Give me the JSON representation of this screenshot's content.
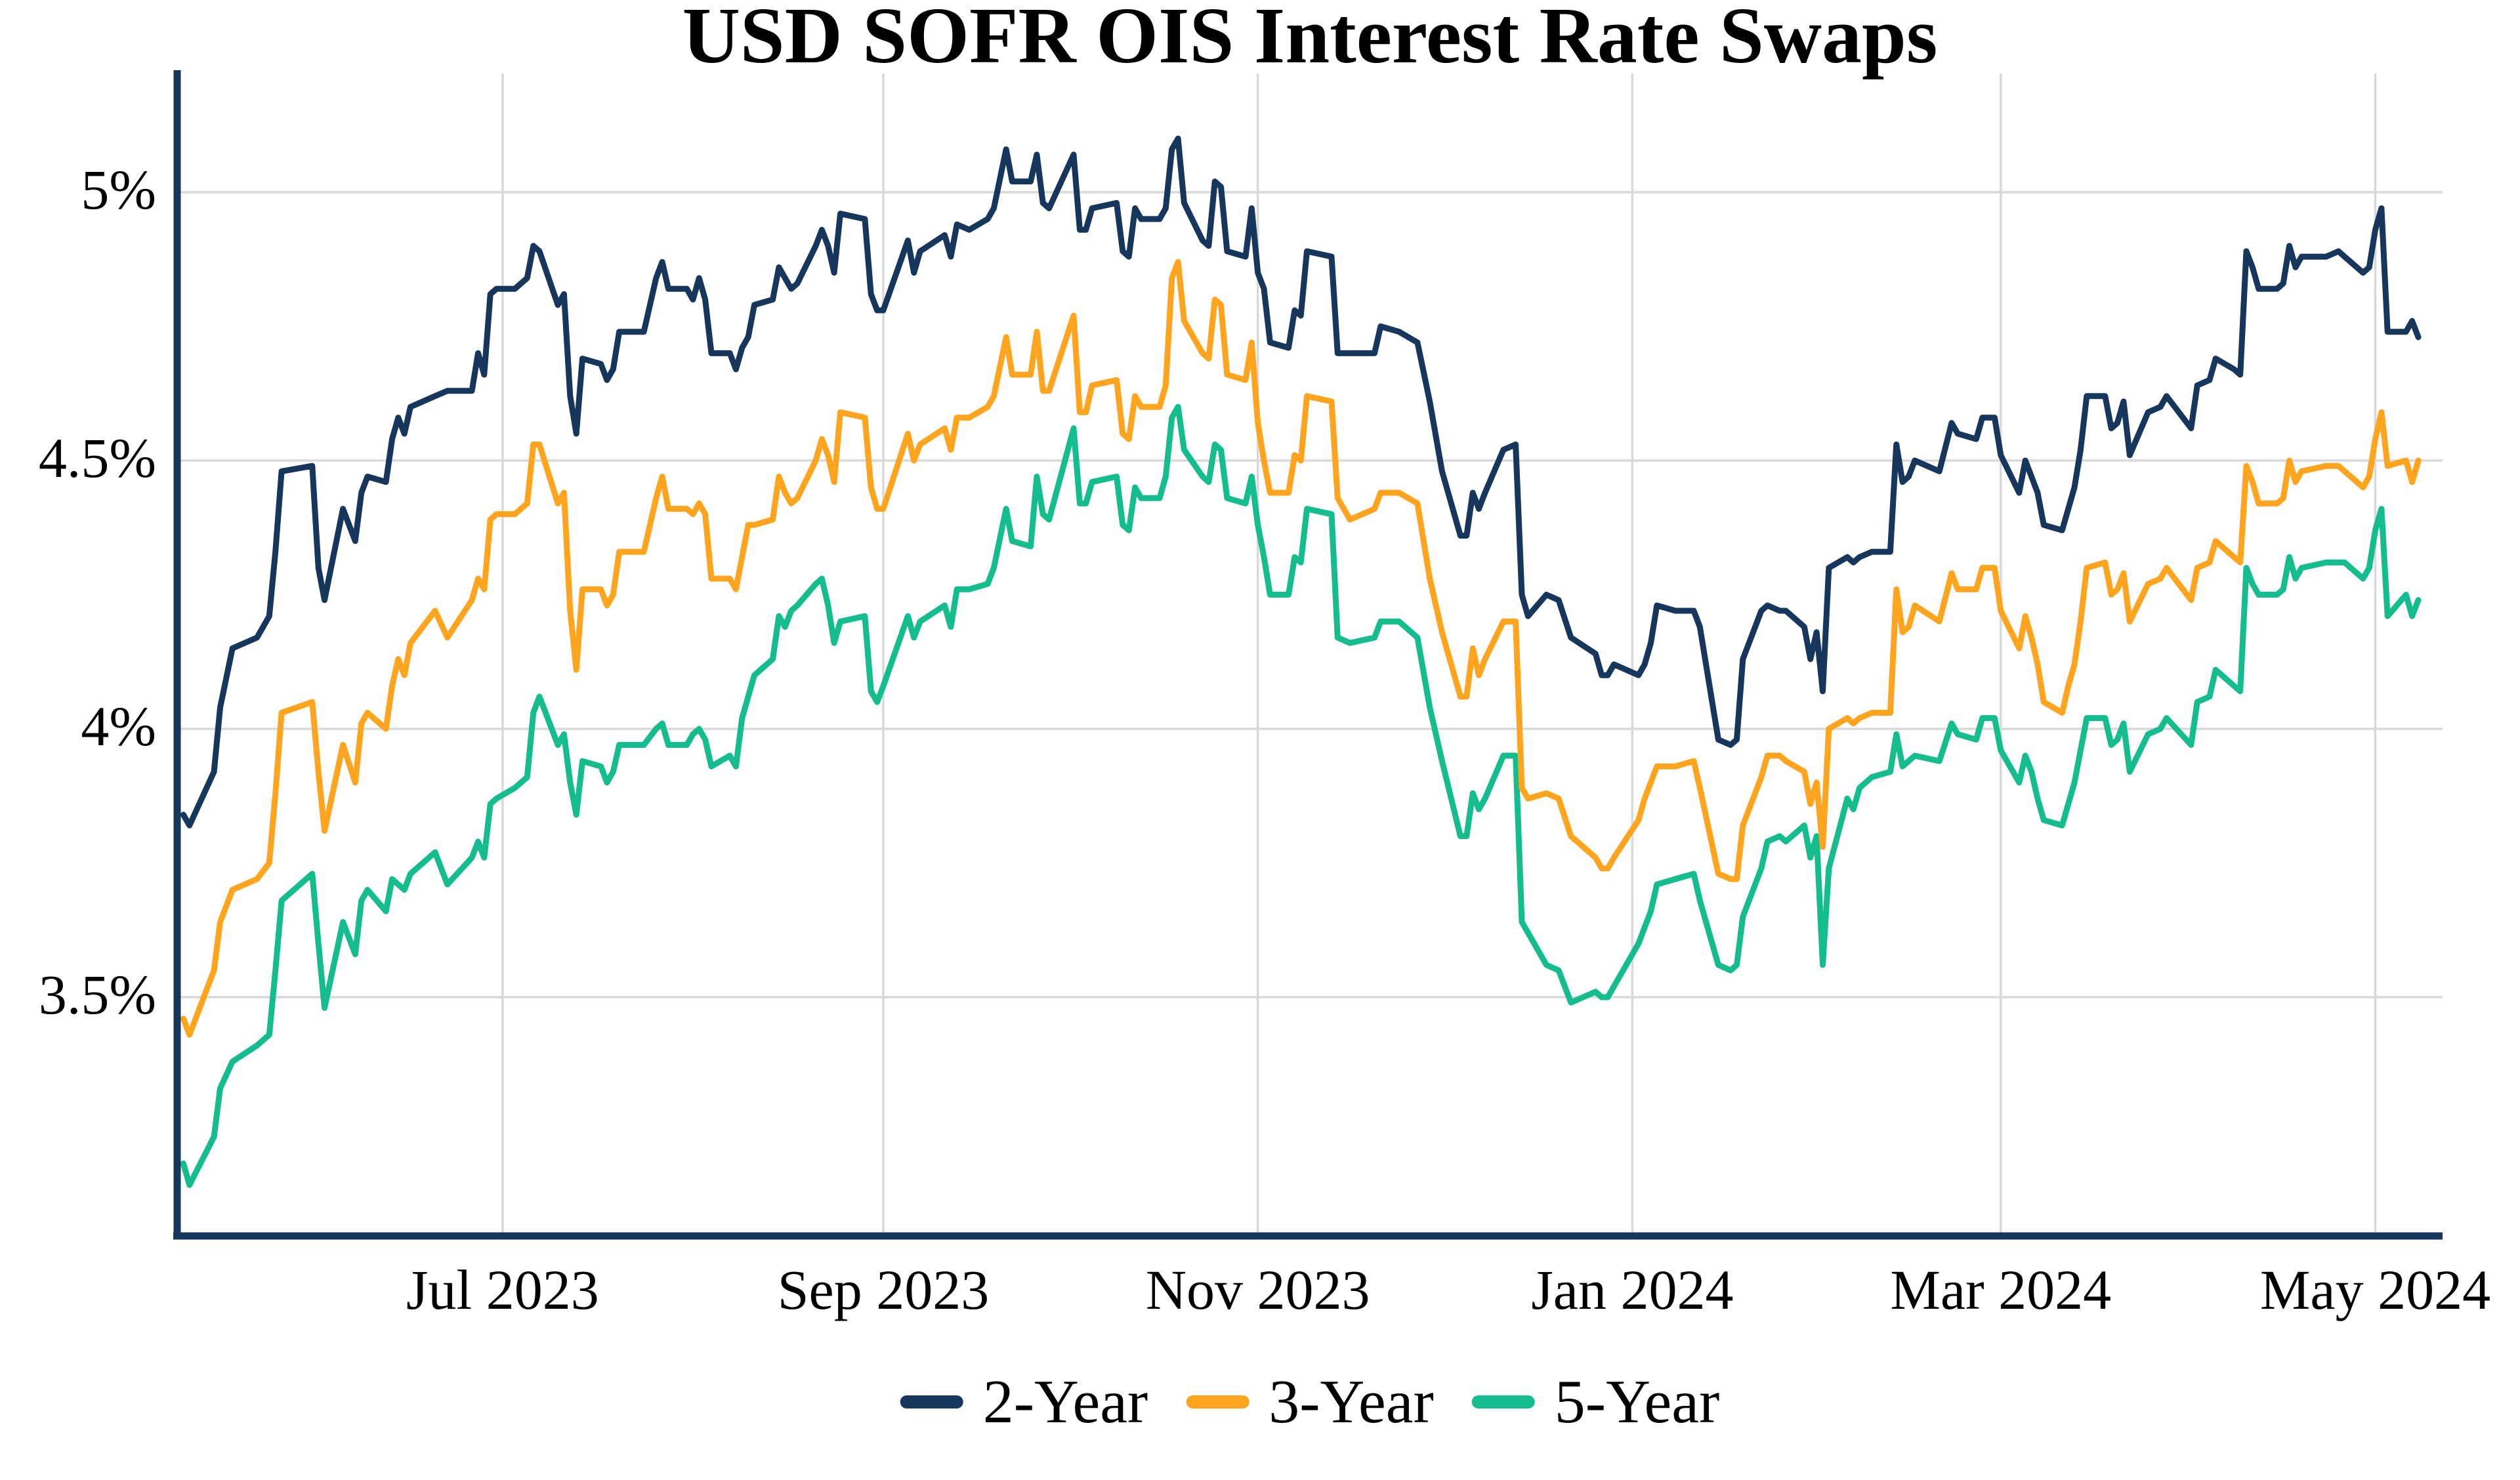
{
  "chart_data": {
    "type": "line",
    "title": "USD SOFR OIS Interest Rate Swaps",
    "xlabel": "",
    "ylabel": "",
    "grid": true,
    "legend_position": "bottom",
    "grid_color": "#D9D9D9",
    "axis_color": "#16365C",
    "x_domain": [
      "2023-05-09",
      "2024-05-08"
    ],
    "x_ticks": [
      "2023-07-01",
      "2023-09-01",
      "2023-11-01",
      "2024-01-01",
      "2024-03-01",
      "2024-05-01"
    ],
    "x_tick_labels": [
      "Jul 2023",
      "Sep 2023",
      "Nov 2023",
      "Jan 2024",
      "Mar 2024",
      "May 2024"
    ],
    "y_ticks": [
      5,
      4.5,
      4,
      3.5
    ],
    "y_tick_labels": [
      "5%",
      "4.5%",
      "4%",
      "3.5%"
    ],
    "ylim": [
      3.05,
      5.22
    ],
    "dates": [
      "2023-05-10",
      "2023-05-11",
      "2023-05-15",
      "2023-05-16",
      "2023-05-18",
      "2023-05-22",
      "2023-05-24",
      "2023-05-25",
      "2023-05-26",
      "2023-05-31",
      "2023-06-01",
      "2023-06-02",
      "2023-06-05",
      "2023-06-07",
      "2023-06-08",
      "2023-06-09",
      "2023-06-12",
      "2023-06-13",
      "2023-06-14",
      "2023-06-15",
      "2023-06-16",
      "2023-06-20",
      "2023-06-22",
      "2023-06-26",
      "2023-06-27",
      "2023-06-28",
      "2023-06-29",
      "2023-06-30",
      "2023-07-03",
      "2023-07-05",
      "2023-07-06",
      "2023-07-07",
      "2023-07-10",
      "2023-07-11",
      "2023-07-12",
      "2023-07-13",
      "2023-07-14",
      "2023-07-17",
      "2023-07-18",
      "2023-07-19",
      "2023-07-20",
      "2023-07-24",
      "2023-07-26",
      "2023-07-27",
      "2023-07-28",
      "2023-07-31",
      "2023-08-01",
      "2023-08-02",
      "2023-08-03",
      "2023-08-04",
      "2023-08-07",
      "2023-08-08",
      "2023-08-09",
      "2023-08-10",
      "2023-08-11",
      "2023-08-14",
      "2023-08-15",
      "2023-08-16",
      "2023-08-17",
      "2023-08-18",
      "2023-08-21",
      "2023-08-22",
      "2023-08-23",
      "2023-08-24",
      "2023-08-25",
      "2023-08-29",
      "2023-08-30",
      "2023-08-31",
      "2023-09-01",
      "2023-09-05",
      "2023-09-06",
      "2023-09-07",
      "2023-09-11",
      "2023-09-12",
      "2023-09-13",
      "2023-09-15",
      "2023-09-18",
      "2023-09-19",
      "2023-09-21",
      "2023-09-22",
      "2023-09-25",
      "2023-09-26",
      "2023-09-27",
      "2023-09-28",
      "2023-10-02",
      "2023-10-03",
      "2023-10-04",
      "2023-10-05",
      "2023-10-09",
      "2023-10-10",
      "2023-10-11",
      "2023-10-12",
      "2023-10-13",
      "2023-10-16",
      "2023-10-17",
      "2023-10-18",
      "2023-10-19",
      "2023-10-20",
      "2023-10-23",
      "2023-10-24",
      "2023-10-25",
      "2023-10-26",
      "2023-10-27",
      "2023-10-30",
      "2023-10-31",
      "2023-11-01",
      "2023-11-02",
      "2023-11-03",
      "2023-11-06",
      "2023-11-07",
      "2023-11-08",
      "2023-11-09",
      "2023-11-13",
      "2023-11-14",
      "2023-11-16",
      "2023-11-20",
      "2023-11-21",
      "2023-11-24",
      "2023-11-27",
      "2023-11-29",
      "2023-12-01",
      "2023-12-04",
      "2023-12-05",
      "2023-12-06",
      "2023-12-07",
      "2023-12-08",
      "2023-12-11",
      "2023-12-13",
      "2023-12-14",
      "2023-12-15",
      "2023-12-18",
      "2023-12-20",
      "2023-12-22",
      "2023-12-26",
      "2023-12-27",
      "2023-12-28",
      "2023-12-29",
      "2024-01-02",
      "2024-01-03",
      "2024-01-04",
      "2024-01-05",
      "2024-01-08",
      "2024-01-11",
      "2024-01-12",
      "2024-01-15",
      "2024-01-17",
      "2024-01-18",
      "2024-01-19",
      "2024-01-22",
      "2024-01-23",
      "2024-01-25",
      "2024-01-26",
      "2024-01-29",
      "2024-01-30",
      "2024-01-31",
      "2024-02-01",
      "2024-02-02",
      "2024-02-05",
      "2024-02-06",
      "2024-02-07",
      "2024-02-09",
      "2024-02-12",
      "2024-02-13",
      "2024-02-14",
      "2024-02-15",
      "2024-02-16",
      "2024-02-20",
      "2024-02-22",
      "2024-02-23",
      "2024-02-26",
      "2024-02-27",
      "2024-02-29",
      "2024-03-01",
      "2024-03-04",
      "2024-03-05",
      "2024-03-06",
      "2024-03-07",
      "2024-03-08",
      "2024-03-11",
      "2024-03-12",
      "2024-03-13",
      "2024-03-14",
      "2024-03-15",
      "2024-03-18",
      "2024-03-19",
      "2024-03-20",
      "2024-03-21",
      "2024-03-22",
      "2024-03-25",
      "2024-03-27",
      "2024-03-28",
      "2024-04-01",
      "2024-04-02",
      "2024-04-04",
      "2024-04-05",
      "2024-04-08",
      "2024-04-09",
      "2024-04-10",
      "2024-04-11",
      "2024-04-12",
      "2024-04-15",
      "2024-04-16",
      "2024-04-17",
      "2024-04-18",
      "2024-04-19",
      "2024-04-23",
      "2024-04-25",
      "2024-04-26",
      "2024-04-29",
      "2024-04-30",
      "2024-05-01",
      "2024-05-02",
      "2024-05-03",
      "2024-05-06",
      "2024-05-07",
      "2024-05-08"
    ],
    "series": [
      {
        "name": "2-Year",
        "color": "#16365C",
        "values": [
          3.84,
          3.82,
          3.92,
          4.04,
          4.15,
          4.17,
          4.21,
          4.33,
          4.48,
          4.49,
          4.3,
          4.24,
          4.41,
          4.35,
          4.44,
          4.47,
          4.46,
          4.54,
          4.58,
          4.55,
          4.6,
          4.62,
          4.63,
          4.63,
          4.7,
          4.66,
          4.81,
          4.82,
          4.82,
          4.84,
          4.9,
          4.89,
          4.79,
          4.81,
          4.62,
          4.55,
          4.69,
          4.68,
          4.65,
          4.67,
          4.74,
          4.74,
          4.84,
          4.87,
          4.82,
          4.82,
          4.8,
          4.84,
          4.8,
          4.7,
          4.7,
          4.67,
          4.71,
          4.73,
          4.79,
          4.8,
          4.86,
          4.84,
          4.82,
          4.83,
          4.9,
          4.93,
          4.9,
          4.85,
          4.96,
          4.95,
          4.81,
          4.78,
          4.78,
          4.91,
          4.85,
          4.89,
          4.92,
          4.88,
          4.94,
          4.93,
          4.95,
          4.97,
          5.08,
          5.02,
          5.02,
          5.07,
          4.98,
          4.97,
          5.07,
          4.93,
          4.93,
          4.97,
          4.98,
          4.89,
          4.88,
          4.97,
          4.95,
          4.95,
          4.97,
          5.08,
          5.1,
          4.98,
          4.91,
          4.9,
          5.02,
          5.01,
          4.89,
          4.88,
          4.97,
          4.85,
          4.82,
          4.72,
          4.71,
          4.78,
          4.77,
          4.89,
          4.88,
          4.7,
          4.7,
          4.7,
          4.75,
          4.74,
          4.72,
          4.61,
          4.48,
          4.36,
          4.36,
          4.44,
          4.41,
          4.44,
          4.52,
          4.53,
          4.25,
          4.21,
          4.25,
          4.24,
          4.17,
          4.14,
          4.1,
          4.1,
          4.12,
          4.1,
          4.12,
          4.16,
          4.23,
          4.22,
          4.22,
          4.19,
          3.98,
          3.97,
          3.98,
          4.13,
          4.22,
          4.23,
          4.22,
          4.22,
          4.19,
          4.13,
          4.18,
          4.07,
          4.3,
          4.32,
          4.31,
          4.32,
          4.33,
          4.33,
          4.53,
          4.46,
          4.47,
          4.5,
          4.48,
          4.57,
          4.55,
          4.54,
          4.58,
          4.58,
          4.51,
          4.44,
          4.5,
          4.47,
          4.44,
          4.38,
          4.37,
          4.41,
          4.45,
          4.52,
          4.62,
          4.62,
          4.56,
          4.57,
          4.61,
          4.51,
          4.59,
          4.6,
          4.62,
          4.56,
          4.64,
          4.65,
          4.69,
          4.67,
          4.66,
          4.89,
          4.86,
          4.82,
          4.82,
          4.83,
          4.9,
          4.86,
          4.88,
          4.88,
          4.89,
          4.88,
          4.85,
          4.86,
          4.93,
          4.97,
          4.74,
          4.74,
          4.76,
          4.73
        ]
      },
      {
        "name": "3-Year",
        "color": "#FFA41E",
        "values": [
          3.46,
          3.43,
          3.55,
          3.64,
          3.7,
          3.72,
          3.75,
          3.88,
          4.03,
          4.05,
          3.92,
          3.81,
          3.97,
          3.9,
          4.01,
          4.03,
          4.0,
          4.08,
          4.13,
          4.1,
          4.16,
          4.22,
          4.17,
          4.24,
          4.28,
          4.26,
          4.39,
          4.4,
          4.4,
          4.42,
          4.53,
          4.53,
          4.42,
          4.44,
          4.22,
          4.11,
          4.26,
          4.26,
          4.23,
          4.25,
          4.33,
          4.33,
          4.43,
          4.47,
          4.41,
          4.41,
          4.4,
          4.42,
          4.4,
          4.28,
          4.28,
          4.26,
          4.32,
          4.38,
          4.38,
          4.39,
          4.47,
          4.44,
          4.42,
          4.43,
          4.5,
          4.54,
          4.51,
          4.46,
          4.59,
          4.58,
          4.45,
          4.41,
          4.41,
          4.55,
          4.5,
          4.53,
          4.56,
          4.52,
          4.58,
          4.58,
          4.6,
          4.62,
          4.73,
          4.66,
          4.66,
          4.74,
          4.63,
          4.63,
          4.77,
          4.59,
          4.59,
          4.64,
          4.65,
          4.55,
          4.54,
          4.62,
          4.6,
          4.6,
          4.64,
          4.84,
          4.87,
          4.76,
          4.7,
          4.69,
          4.8,
          4.79,
          4.66,
          4.65,
          4.72,
          4.57,
          4.5,
          4.44,
          4.44,
          4.51,
          4.5,
          4.62,
          4.61,
          4.43,
          4.39,
          4.41,
          4.44,
          4.44,
          4.42,
          4.28,
          4.18,
          4.06,
          4.06,
          4.15,
          4.1,
          4.13,
          4.2,
          4.2,
          3.89,
          3.87,
          3.88,
          3.87,
          3.8,
          3.76,
          3.74,
          3.74,
          3.76,
          3.83,
          3.87,
          3.9,
          3.93,
          3.93,
          3.94,
          3.89,
          3.73,
          3.72,
          3.72,
          3.82,
          3.91,
          3.95,
          3.95,
          3.94,
          3.92,
          3.86,
          3.9,
          3.78,
          4.0,
          4.02,
          4.01,
          4.02,
          4.03,
          4.03,
          4.26,
          4.18,
          4.19,
          4.23,
          4.2,
          4.29,
          4.26,
          4.26,
          4.3,
          4.3,
          4.22,
          4.15,
          4.21,
          4.17,
          4.12,
          4.05,
          4.03,
          4.08,
          4.12,
          4.2,
          4.3,
          4.31,
          4.25,
          4.26,
          4.29,
          4.2,
          4.27,
          4.28,
          4.3,
          4.24,
          4.3,
          4.31,
          4.35,
          4.32,
          4.31,
          4.49,
          4.46,
          4.42,
          4.42,
          4.43,
          4.5,
          4.46,
          4.48,
          4.49,
          4.49,
          4.48,
          4.45,
          4.47,
          4.54,
          4.59,
          4.49,
          4.5,
          4.46,
          4.5
        ]
      },
      {
        "name": "5-Year",
        "color": "#15BD8E",
        "values": [
          3.19,
          3.15,
          3.24,
          3.33,
          3.38,
          3.41,
          3.43,
          3.55,
          3.68,
          3.73,
          3.6,
          3.48,
          3.64,
          3.58,
          3.68,
          3.7,
          3.66,
          3.72,
          3.71,
          3.7,
          3.73,
          3.77,
          3.71,
          3.76,
          3.79,
          3.76,
          3.86,
          3.87,
          3.89,
          3.91,
          4.03,
          4.06,
          3.97,
          3.99,
          3.9,
          3.84,
          3.94,
          3.93,
          3.9,
          3.92,
          3.97,
          3.97,
          4.0,
          4.01,
          3.97,
          3.97,
          3.99,
          4.0,
          3.98,
          3.93,
          3.95,
          3.93,
          4.02,
          4.06,
          4.1,
          4.13,
          4.21,
          4.19,
          4.22,
          4.23,
          4.27,
          4.28,
          4.23,
          4.16,
          4.2,
          4.21,
          4.07,
          4.05,
          4.08,
          4.21,
          4.17,
          4.2,
          4.23,
          4.19,
          4.26,
          4.26,
          4.27,
          4.3,
          4.41,
          4.35,
          4.34,
          4.47,
          4.4,
          4.39,
          4.56,
          4.42,
          4.42,
          4.46,
          4.47,
          4.38,
          4.37,
          4.45,
          4.43,
          4.43,
          4.47,
          4.58,
          4.6,
          4.52,
          4.47,
          4.46,
          4.53,
          4.52,
          4.43,
          4.42,
          4.47,
          4.38,
          4.32,
          4.25,
          4.25,
          4.32,
          4.31,
          4.41,
          4.4,
          4.17,
          4.16,
          4.17,
          4.2,
          4.2,
          4.17,
          4.04,
          3.94,
          3.8,
          3.8,
          3.88,
          3.85,
          3.87,
          3.95,
          3.95,
          3.64,
          3.62,
          3.56,
          3.55,
          3.49,
          3.51,
          3.5,
          3.5,
          3.52,
          3.6,
          3.63,
          3.66,
          3.71,
          3.72,
          3.73,
          3.68,
          3.56,
          3.55,
          3.56,
          3.65,
          3.74,
          3.79,
          3.8,
          3.79,
          3.82,
          3.76,
          3.8,
          3.56,
          3.74,
          3.87,
          3.85,
          3.89,
          3.91,
          3.92,
          3.99,
          3.93,
          3.94,
          3.95,
          3.94,
          4.01,
          3.99,
          3.98,
          4.02,
          4.02,
          3.96,
          3.9,
          3.95,
          3.92,
          3.87,
          3.83,
          3.82,
          3.86,
          3.9,
          3.96,
          4.02,
          4.02,
          3.97,
          3.98,
          4.01,
          3.92,
          3.99,
          4.0,
          4.02,
          3.97,
          4.05,
          4.06,
          4.11,
          4.08,
          4.07,
          4.3,
          4.27,
          4.25,
          4.25,
          4.26,
          4.32,
          4.28,
          4.3,
          4.31,
          4.31,
          4.31,
          4.28,
          4.3,
          4.37,
          4.41,
          4.21,
          4.25,
          4.21,
          4.24
        ]
      }
    ]
  }
}
